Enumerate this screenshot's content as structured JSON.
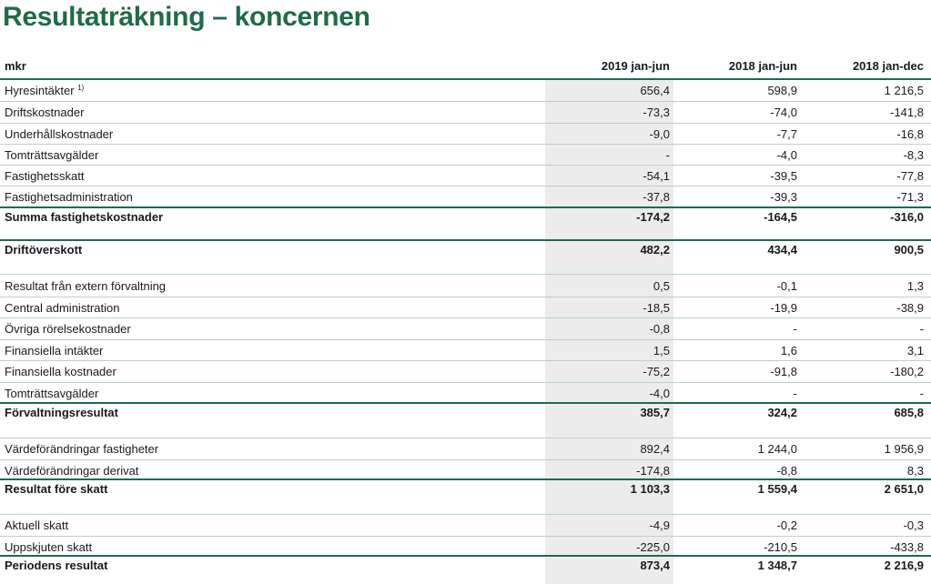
{
  "title": "Resultaträkning – koncernen",
  "header": {
    "label": "mkr",
    "col1": "2019 jan-jun",
    "col2": "2018 jan-jun",
    "col3": "2018 jan-dec"
  },
  "rows": [
    {
      "label": "Hyresintäkter",
      "sup": "1)",
      "c1": "656,4",
      "c2": "598,9",
      "c3": "1 216,5"
    },
    {
      "label": "Driftskostnader",
      "c1": "-73,3",
      "c2": "-74,0",
      "c3": "-141,8"
    },
    {
      "label": "Underhållskostnader",
      "c1": "-9,0",
      "c2": "-7,7",
      "c3": "-16,8"
    },
    {
      "label": "Tomträttsavgälder",
      "c1": "-",
      "c2": "-4,0",
      "c3": "-8,3"
    },
    {
      "label": "Fastighetsskatt",
      "c1": "-54,1",
      "c2": "-39,5",
      "c3": "-77,8"
    },
    {
      "label": "Fastighetsadministration",
      "c1": "-37,8",
      "c2": "-39,3",
      "c3": "-71,3"
    },
    {
      "label": "Summa fastighetskostnader",
      "c1": "-174,2",
      "c2": "-164,5",
      "c3": "-316,0"
    },
    {
      "label": "Driftöverskott",
      "c1": "482,2",
      "c2": "434,4",
      "c3": "900,5"
    },
    {
      "label": "Resultat från extern förvaltning",
      "c1": "0,5",
      "c2": "-0,1",
      "c3": "1,3"
    },
    {
      "label": "Central administration",
      "c1": "-18,5",
      "c2": "-19,9",
      "c3": "-38,9"
    },
    {
      "label": "Övriga rörelsekostnader",
      "c1": "-0,8",
      "c2": "-",
      "c3": "-"
    },
    {
      "label": "Finansiella intäkter",
      "c1": "1,5",
      "c2": "1,6",
      "c3": "3,1"
    },
    {
      "label": "Finansiella kostnader",
      "c1": "-75,2",
      "c2": "-91,8",
      "c3": "-180,2"
    },
    {
      "label": "Tomträttsavgälder",
      "c1": "-4,0",
      "c2": "-",
      "c3": "-"
    },
    {
      "label": "Förvaltningsresultat",
      "c1": "385,7",
      "c2": "324,2",
      "c3": "685,8"
    },
    {
      "label": "Värdeförändringar fastigheter",
      "c1": "892,4",
      "c2": "1 244,0",
      "c3": "1 956,9"
    },
    {
      "label": "Värdeförändringar derivat",
      "c1": "-174,8",
      "c2": "-8,8",
      "c3": "8,3"
    },
    {
      "label": "Resultat före skatt",
      "c1": "1 103,3",
      "c2": "1 559,4",
      "c3": "2 651,0"
    },
    {
      "label": "Aktuell skatt",
      "c1": "-4,9",
      "c2": "-0,2",
      "c3": "-0,3"
    },
    {
      "label": "Uppskjuten skatt",
      "c1": "-225,0",
      "c2": "-210,5",
      "c3": "-433,8"
    },
    {
      "label": "Periodens resultat",
      "c1": "873,4",
      "c2": "1 348,7",
      "c3": "2 216,9"
    }
  ]
}
